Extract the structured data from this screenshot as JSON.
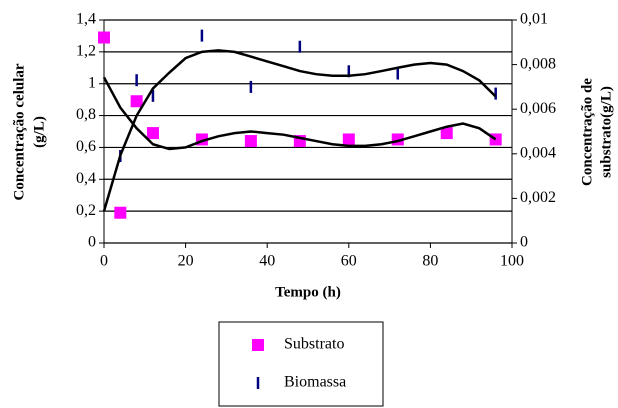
{
  "chart_data": {
    "type": "scatter",
    "xlabel": "Tempo (h)",
    "ylabel": [
      "Concentração celular",
      "(g/L)"
    ],
    "y2label": [
      "Concentração de",
      "substrato(g/L)"
    ],
    "xlim": [
      0,
      100
    ],
    "xticks": [
      0,
      20,
      40,
      60,
      80,
      100
    ],
    "ylim": [
      0,
      1.4
    ],
    "yticks": [
      0,
      {
        "value": 0.2,
        "label": "0,2"
      },
      {
        "value": 0.4,
        "label": "0,4"
      },
      {
        "value": 0.6,
        "label": "0,6"
      },
      {
        "value": 0.8,
        "label": "0,8"
      },
      1,
      {
        "value": 1.2,
        "label": "1,2"
      },
      {
        "value": 1.4,
        "label": "1,4"
      }
    ],
    "y2lim": [
      0,
      0.01
    ],
    "y2ticks": [
      0,
      {
        "value": 0.002,
        "label": "0,002"
      },
      {
        "value": 0.004,
        "label": "0,004"
      },
      {
        "value": 0.006,
        "label": "0,006"
      },
      {
        "value": 0.008,
        "label": "0,008"
      },
      {
        "value": 0.01,
        "label": "0,01"
      }
    ],
    "grid": true,
    "legend": "bottom",
    "series": [
      {
        "name": "Substrato",
        "kind": "square",
        "color": "#ff00ff",
        "x": [
          0,
          4,
          8,
          12,
          24,
          36,
          48,
          60,
          72,
          84,
          96
        ],
        "values": [
          1.29,
          0.19,
          0.89,
          0.69,
          0.65,
          0.64,
          0.64,
          0.65,
          0.65,
          0.69,
          0.65
        ]
      },
      {
        "name": "Biomassa",
        "kind": "dash",
        "color": "#000080",
        "axis": "y2",
        "x": [
          4,
          8,
          12,
          24,
          36,
          48,
          60,
          72,
          96
        ],
        "values": [
          0.0039,
          0.0073,
          0.0066,
          0.0093,
          0.007,
          0.0088,
          0.0077,
          0.0076,
          0.0067
        ]
      },
      {
        "kind": "line",
        "color": "#000000",
        "x": [
          0,
          4,
          8,
          12,
          16,
          20,
          24,
          28,
          32,
          36,
          40,
          44,
          48,
          52,
          56,
          60,
          64,
          68,
          72,
          76,
          80,
          84,
          88,
          92,
          96
        ],
        "values": [
          1.04,
          0.85,
          0.72,
          0.62,
          0.59,
          0.6,
          0.64,
          0.67,
          0.69,
          0.7,
          0.69,
          0.68,
          0.66,
          0.64,
          0.62,
          0.61,
          0.61,
          0.62,
          0.64,
          0.67,
          0.7,
          0.73,
          0.75,
          0.72,
          0.65
        ]
      },
      {
        "kind": "line",
        "color": "#000000",
        "axis": "y2",
        "x": [
          0,
          4,
          8,
          12,
          16,
          20,
          24,
          28,
          32,
          36,
          40,
          44,
          48,
          52,
          56,
          60,
          64,
          68,
          72,
          76,
          80,
          84,
          88,
          92,
          96
        ],
        "values": [
          0.00143,
          0.00393,
          0.00571,
          0.00693,
          0.00764,
          0.00829,
          0.00857,
          0.00864,
          0.00857,
          0.00836,
          0.00814,
          0.00793,
          0.00771,
          0.00757,
          0.0075,
          0.0075,
          0.00757,
          0.00771,
          0.00786,
          0.008,
          0.00807,
          0.008,
          0.00771,
          0.00729,
          0.00657
        ]
      }
    ]
  }
}
